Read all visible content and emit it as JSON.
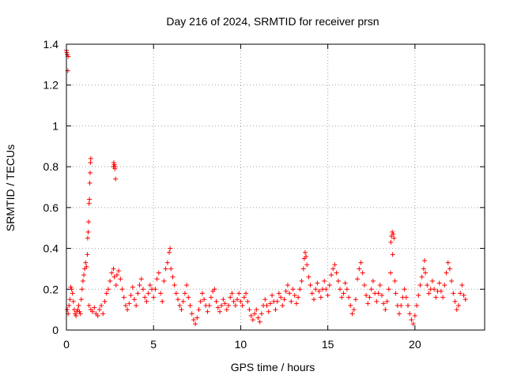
{
  "chart_data": {
    "type": "scatter",
    "title": "Day 216 of 2024, SRMTID for receiver prsn",
    "xlabel": "GPS time / hours",
    "ylabel": "SRMTID / TECUs",
    "xlim": [
      0,
      24
    ],
    "ylim": [
      0,
      1.4
    ],
    "grid": true,
    "marker": "+",
    "xticks": [
      0,
      5,
      10,
      15,
      20
    ],
    "xtick_labels": [
      "0",
      "5",
      "10",
      "15",
      "20"
    ],
    "yticks": [
      0,
      0.2,
      0.4,
      0.6,
      0.8,
      1.0,
      1.2,
      1.4
    ],
    "ytick_labels": [
      "0",
      "0.2",
      "0.4",
      "0.6",
      "0.8",
      "1",
      "1.2",
      "1.4"
    ],
    "series": [
      {
        "name": "SRMTID",
        "color": "#ff0000",
        "points": [
          [
            0.0,
            1.37
          ],
          [
            0.02,
            1.36
          ],
          [
            0.05,
            1.35
          ],
          [
            0.08,
            1.27
          ],
          [
            0.1,
            1.34
          ],
          [
            0.05,
            0.1
          ],
          [
            0.1,
            0.08
          ],
          [
            0.15,
            0.12
          ],
          [
            0.2,
            0.15
          ],
          [
            0.25,
            0.21
          ],
          [
            0.3,
            0.2
          ],
          [
            0.35,
            0.18
          ],
          [
            0.4,
            0.14
          ],
          [
            0.45,
            0.1
          ],
          [
            0.5,
            0.08
          ],
          [
            0.55,
            0.07
          ],
          [
            0.6,
            0.09
          ],
          [
            0.65,
            0.1
          ],
          [
            0.7,
            0.12
          ],
          [
            0.75,
            0.09
          ],
          [
            0.8,
            0.08
          ],
          [
            0.85,
            0.15
          ],
          [
            0.9,
            0.2
          ],
          [
            0.95,
            0.24
          ],
          [
            1.0,
            0.27
          ],
          [
            1.05,
            0.3
          ],
          [
            1.1,
            0.33
          ],
          [
            1.15,
            0.31
          ],
          [
            1.2,
            0.37
          ],
          [
            1.22,
            0.45
          ],
          [
            1.25,
            0.48
          ],
          [
            1.27,
            0.53
          ],
          [
            1.3,
            0.62
          ],
          [
            1.32,
            0.64
          ],
          [
            1.34,
            0.72
          ],
          [
            1.36,
            0.77
          ],
          [
            1.38,
            0.82
          ],
          [
            1.4,
            0.84
          ],
          [
            1.3,
            0.12
          ],
          [
            1.4,
            0.1
          ],
          [
            1.5,
            0.09
          ],
          [
            1.6,
            0.11
          ],
          [
            1.7,
            0.08
          ],
          [
            1.8,
            0.07
          ],
          [
            1.9,
            0.1
          ],
          [
            2.0,
            0.12
          ],
          [
            2.1,
            0.08
          ],
          [
            2.2,
            0.14
          ],
          [
            2.3,
            0.18
          ],
          [
            2.4,
            0.2
          ],
          [
            2.5,
            0.24
          ],
          [
            2.6,
            0.28
          ],
          [
            2.7,
            0.3
          ],
          [
            2.75,
            0.26
          ],
          [
            2.7,
            0.8
          ],
          [
            2.72,
            0.82
          ],
          [
            2.75,
            0.81
          ],
          [
            2.78,
            0.79
          ],
          [
            2.8,
            0.8
          ],
          [
            2.82,
            0.74
          ],
          [
            2.85,
            0.22
          ],
          [
            2.9,
            0.27
          ],
          [
            3.0,
            0.29
          ],
          [
            3.1,
            0.25
          ],
          [
            3.2,
            0.2
          ],
          [
            3.3,
            0.16
          ],
          [
            3.4,
            0.12
          ],
          [
            3.5,
            0.1
          ],
          [
            3.6,
            0.13
          ],
          [
            3.7,
            0.17
          ],
          [
            3.8,
            0.21
          ],
          [
            3.9,
            0.15
          ],
          [
            4.0,
            0.12
          ],
          [
            4.1,
            0.18
          ],
          [
            4.2,
            0.22
          ],
          [
            4.3,
            0.25
          ],
          [
            4.4,
            0.2
          ],
          [
            4.5,
            0.16
          ],
          [
            4.6,
            0.14
          ],
          [
            4.7,
            0.18
          ],
          [
            4.8,
            0.22
          ],
          [
            4.9,
            0.2
          ],
          [
            5.0,
            0.16
          ],
          [
            5.1,
            0.2
          ],
          [
            5.2,
            0.25
          ],
          [
            5.3,
            0.28
          ],
          [
            5.4,
            0.18
          ],
          [
            5.5,
            0.14
          ],
          [
            5.6,
            0.24
          ],
          [
            5.7,
            0.3
          ],
          [
            5.8,
            0.33
          ],
          [
            5.9,
            0.38
          ],
          [
            5.95,
            0.4
          ],
          [
            6.0,
            0.3
          ],
          [
            6.1,
            0.26
          ],
          [
            6.2,
            0.22
          ],
          [
            6.3,
            0.18
          ],
          [
            6.4,
            0.15
          ],
          [
            6.5,
            0.12
          ],
          [
            6.6,
            0.1
          ],
          [
            6.7,
            0.14
          ],
          [
            6.8,
            0.18
          ],
          [
            6.9,
            0.22
          ],
          [
            7.0,
            0.16
          ],
          [
            7.1,
            0.12
          ],
          [
            7.2,
            0.08
          ],
          [
            7.3,
            0.05
          ],
          [
            7.4,
            0.03
          ],
          [
            7.5,
            0.06
          ],
          [
            7.6,
            0.1
          ],
          [
            7.7,
            0.14
          ],
          [
            7.8,
            0.18
          ],
          [
            7.9,
            0.15
          ],
          [
            8.0,
            0.12
          ],
          [
            8.1,
            0.09
          ],
          [
            8.2,
            0.12
          ],
          [
            8.3,
            0.16
          ],
          [
            8.4,
            0.19
          ],
          [
            8.5,
            0.2
          ],
          [
            8.6,
            0.14
          ],
          [
            8.7,
            0.11
          ],
          [
            8.8,
            0.09
          ],
          [
            8.9,
            0.12
          ],
          [
            9.0,
            0.15
          ],
          [
            9.1,
            0.13
          ],
          [
            9.2,
            0.1
          ],
          [
            9.3,
            0.12
          ],
          [
            9.4,
            0.16
          ],
          [
            9.5,
            0.18
          ],
          [
            9.6,
            0.14
          ],
          [
            9.7,
            0.12
          ],
          [
            9.8,
            0.15
          ],
          [
            9.9,
            0.18
          ],
          [
            10.0,
            0.14
          ],
          [
            10.1,
            0.12
          ],
          [
            10.2,
            0.16
          ],
          [
            10.3,
            0.18
          ],
          [
            10.4,
            0.14
          ],
          [
            10.5,
            0.1
          ],
          [
            10.6,
            0.07
          ],
          [
            10.7,
            0.05
          ],
          [
            10.8,
            0.08
          ],
          [
            10.9,
            0.1
          ],
          [
            11.0,
            0.06
          ],
          [
            11.1,
            0.04
          ],
          [
            11.2,
            0.08
          ],
          [
            11.3,
            0.12
          ],
          [
            11.4,
            0.15
          ],
          [
            11.5,
            0.12
          ],
          [
            11.6,
            0.09
          ],
          [
            11.7,
            0.13
          ],
          [
            11.8,
            0.17
          ],
          [
            11.9,
            0.14
          ],
          [
            12.0,
            0.1
          ],
          [
            12.1,
            0.14
          ],
          [
            12.2,
            0.18
          ],
          [
            12.3,
            0.16
          ],
          [
            12.4,
            0.12
          ],
          [
            12.5,
            0.15
          ],
          [
            12.6,
            0.19
          ],
          [
            12.7,
            0.22
          ],
          [
            12.8,
            0.18
          ],
          [
            12.9,
            0.14
          ],
          [
            13.0,
            0.2
          ],
          [
            13.1,
            0.17
          ],
          [
            13.2,
            0.13
          ],
          [
            13.3,
            0.16
          ],
          [
            13.4,
            0.2
          ],
          [
            13.5,
            0.24
          ],
          [
            13.6,
            0.3
          ],
          [
            13.65,
            0.35
          ],
          [
            13.7,
            0.38
          ],
          [
            13.75,
            0.36
          ],
          [
            13.8,
            0.32
          ],
          [
            13.9,
            0.26
          ],
          [
            14.0,
            0.22
          ],
          [
            14.1,
            0.18
          ],
          [
            14.2,
            0.15
          ],
          [
            14.3,
            0.2
          ],
          [
            14.4,
            0.23
          ],
          [
            14.5,
            0.19
          ],
          [
            14.6,
            0.16
          ],
          [
            14.7,
            0.2
          ],
          [
            14.8,
            0.24
          ],
          [
            14.9,
            0.2
          ],
          [
            15.0,
            0.17
          ],
          [
            15.1,
            0.22
          ],
          [
            15.2,
            0.27
          ],
          [
            15.3,
            0.3
          ],
          [
            15.4,
            0.32
          ],
          [
            15.5,
            0.28
          ],
          [
            15.6,
            0.24
          ],
          [
            15.7,
            0.2
          ],
          [
            15.8,
            0.16
          ],
          [
            15.9,
            0.18
          ],
          [
            16.0,
            0.23
          ],
          [
            16.1,
            0.2
          ],
          [
            16.2,
            0.16
          ],
          [
            16.3,
            0.12
          ],
          [
            16.4,
            0.08
          ],
          [
            16.5,
            0.1
          ],
          [
            16.6,
            0.15
          ],
          [
            16.7,
            0.25
          ],
          [
            16.8,
            0.3
          ],
          [
            16.9,
            0.33
          ],
          [
            17.0,
            0.28
          ],
          [
            17.1,
            0.22
          ],
          [
            17.2,
            0.17
          ],
          [
            17.3,
            0.13
          ],
          [
            17.4,
            0.16
          ],
          [
            17.5,
            0.2
          ],
          [
            17.6,
            0.24
          ],
          [
            17.7,
            0.18
          ],
          [
            17.8,
            0.14
          ],
          [
            17.9,
            0.18
          ],
          [
            18.0,
            0.22
          ],
          [
            18.1,
            0.17
          ],
          [
            18.2,
            0.13
          ],
          [
            18.3,
            0.1
          ],
          [
            18.4,
            0.14
          ],
          [
            18.5,
            0.2
          ],
          [
            18.6,
            0.28
          ],
          [
            18.62,
            0.43
          ],
          [
            18.65,
            0.46
          ],
          [
            18.7,
            0.48
          ],
          [
            18.75,
            0.47
          ],
          [
            18.8,
            0.45
          ],
          [
            18.72,
            0.37
          ],
          [
            18.85,
            0.24
          ],
          [
            18.9,
            0.18
          ],
          [
            19.0,
            0.12
          ],
          [
            19.1,
            0.08
          ],
          [
            19.2,
            0.12
          ],
          [
            19.3,
            0.16
          ],
          [
            19.4,
            0.2
          ],
          [
            19.5,
            0.16
          ],
          [
            19.6,
            0.12
          ],
          [
            19.7,
            0.08
          ],
          [
            19.8,
            0.05
          ],
          [
            19.9,
            0.03
          ],
          [
            20.0,
            0.07
          ],
          [
            20.1,
            0.12
          ],
          [
            20.2,
            0.17
          ],
          [
            20.3,
            0.22
          ],
          [
            20.4,
            0.26
          ],
          [
            20.5,
            0.3
          ],
          [
            20.55,
            0.34
          ],
          [
            20.6,
            0.28
          ],
          [
            20.7,
            0.22
          ],
          [
            20.8,
            0.18
          ],
          [
            20.9,
            0.2
          ],
          [
            21.0,
            0.24
          ],
          [
            21.1,
            0.2
          ],
          [
            21.2,
            0.16
          ],
          [
            21.3,
            0.19
          ],
          [
            21.4,
            0.23
          ],
          [
            21.5,
            0.19
          ],
          [
            21.6,
            0.16
          ],
          [
            21.7,
            0.22
          ],
          [
            21.8,
            0.28
          ],
          [
            21.9,
            0.33
          ],
          [
            22.0,
            0.3
          ],
          [
            22.1,
            0.24
          ],
          [
            22.2,
            0.18
          ],
          [
            22.3,
            0.14
          ],
          [
            22.4,
            0.1
          ],
          [
            22.5,
            0.12
          ],
          [
            22.6,
            0.18
          ],
          [
            22.7,
            0.22
          ],
          [
            22.8,
            0.17
          ],
          [
            22.9,
            0.15
          ]
        ]
      }
    ]
  }
}
